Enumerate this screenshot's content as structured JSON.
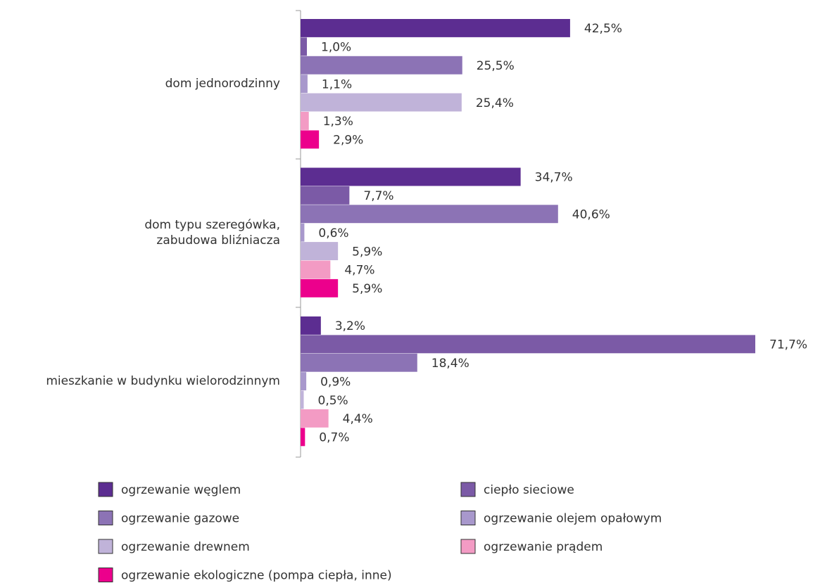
{
  "chart_data": {
    "type": "bar",
    "orientation": "horizontal",
    "categories": [
      "dom jednorodzinny",
      "dom typu szeregówka,\nzabudowa bliźniacza",
      "mieszkanie w budynku wielorodzinnym"
    ],
    "series": [
      {
        "name": "ogrzewanie węglem",
        "color": "#5c2d91",
        "values": [
          42.5,
          34.7,
          3.2
        ],
        "value_labels": [
          "42,5%",
          "34,7%",
          "3,2%"
        ]
      },
      {
        "name": "ciepło sieciowe",
        "color": "#7b5aa6",
        "values": [
          1.0,
          7.7,
          71.7
        ],
        "value_labels": [
          "1,0%",
          "7,7%",
          "71,7%"
        ]
      },
      {
        "name": "ogrzewanie gazowe",
        "color": "#8c73b5",
        "values": [
          25.5,
          40.6,
          18.4
        ],
        "value_labels": [
          "25,5%",
          "40,6%",
          "18,4%"
        ]
      },
      {
        "name": "ogrzewanie olejem opałowym",
        "color": "#a898cc",
        "values": [
          1.1,
          0.6,
          0.9
        ],
        "value_labels": [
          "1,1%",
          "0,6%",
          "0,9%"
        ]
      },
      {
        "name": "ogrzewanie drewnem",
        "color": "#c0b3d9",
        "values": [
          25.4,
          5.9,
          0.5
        ],
        "value_labels": [
          "25,4%",
          "5,9%",
          "0,5%"
        ]
      },
      {
        "name": "ogrzewanie prądem",
        "color": "#f39bc4",
        "values": [
          1.3,
          4.7,
          4.4
        ],
        "value_labels": [
          "1,3%",
          "4,7%",
          "4,4%"
        ]
      },
      {
        "name": "ogrzewanie ekologiczne (pompa ciepła, inne)",
        "color": "#ec008c",
        "values": [
          2.9,
          5.9,
          0.7
        ],
        "value_labels": [
          "2,9%",
          "5,9%",
          "0,7%"
        ]
      }
    ],
    "legend": "bottom"
  }
}
